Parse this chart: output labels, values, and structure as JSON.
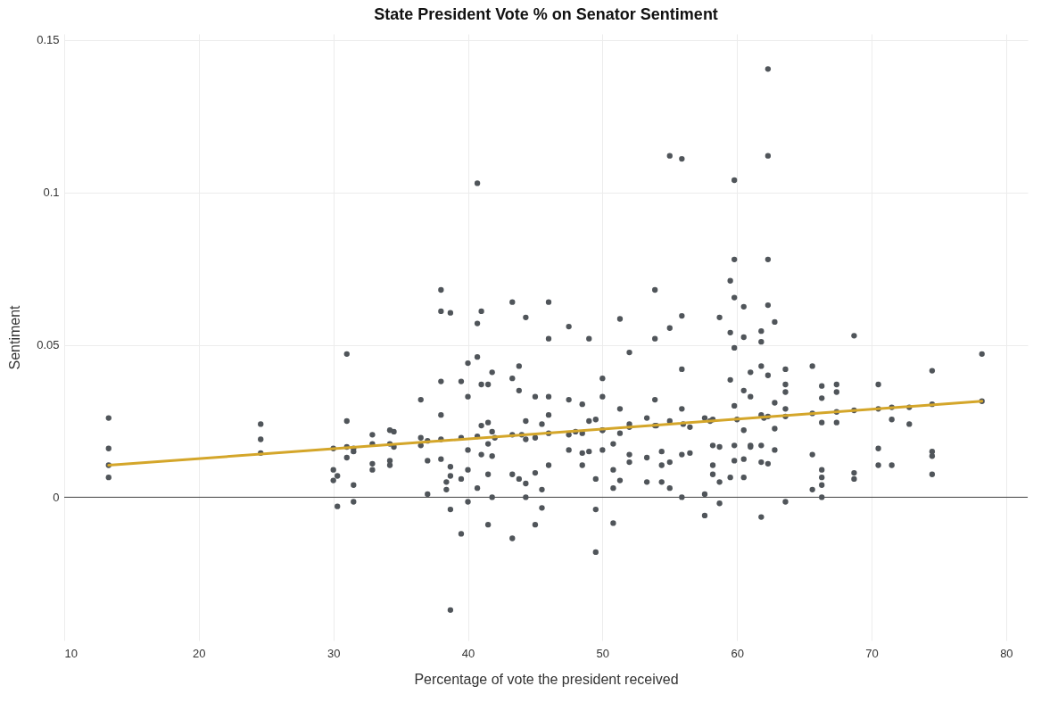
{
  "chart_data": {
    "type": "scatter",
    "title": "State President Vote % on Senator Sentiment",
    "xlabel": "Percentage of vote the president received",
    "ylabel": "Sentiment",
    "xlim": [
      10,
      81.6
    ],
    "ylim": [
      -0.047,
      0.152
    ],
    "xticks": [
      10,
      20,
      30,
      40,
      50,
      60,
      70,
      80
    ],
    "yticks": [
      0,
      0.05,
      0.1,
      0.15
    ],
    "grid": true,
    "ref_lines": [
      {
        "axis": "y",
        "value": 0,
        "color": "#444444"
      }
    ],
    "series": [
      {
        "type": "scatter",
        "color": "#50555a",
        "marker": "circle",
        "x": [
          13.3,
          13.3,
          13.3,
          13.3,
          24.6,
          24.6,
          24.6,
          30,
          30,
          30,
          30.3,
          30.3,
          31,
          31,
          31,
          31,
          31.5,
          31.5,
          31.5,
          31.5,
          32.9,
          32.9,
          32.9,
          32.9,
          34.2,
          34.2,
          34.2,
          34.2,
          34.5,
          34.5,
          36.5,
          36.5,
          36.5,
          37,
          37,
          37,
          38,
          38,
          38,
          38,
          38,
          38,
          38.4,
          38.4,
          38.7,
          38.7,
          38.7,
          38.7,
          38.7,
          39.5,
          39.5,
          39.5,
          39.5,
          40,
          40,
          40,
          40,
          40,
          40.7,
          40.7,
          40.7,
          40.7,
          40.7,
          41,
          41,
          41,
          41,
          41.5,
          41.5,
          41.5,
          41.5,
          41.5,
          41.8,
          41.8,
          41.8,
          41.8,
          43.3,
          43.3,
          43.3,
          43.3,
          43.3,
          43.8,
          43.8,
          43.8,
          44.3,
          44.3,
          44.3,
          44.3,
          44.3,
          45,
          45,
          45,
          45,
          45.5,
          45.5,
          45.5,
          46,
          46,
          46,
          46,
          46,
          47.5,
          47.5,
          47.5,
          47.5,
          48.5,
          48.5,
          48.5,
          48.5,
          49,
          49,
          49,
          49.5,
          49.5,
          49.5,
          49.5,
          50,
          50,
          50,
          50,
          50.8,
          50.8,
          50.8,
          50.8,
          51.3,
          51.3,
          51.3,
          51.3,
          52,
          52,
          52,
          52,
          53.3,
          53.3,
          53.3,
          53.9,
          53.9,
          53.9,
          53.9,
          54.4,
          54.4,
          54.4,
          55,
          55,
          55,
          55,
          55,
          55.9,
          55.9,
          55.9,
          55.9,
          55.9,
          55.9,
          56.5,
          56.5,
          57.6,
          57.6,
          57.6,
          58.2,
          58.2,
          58.2,
          58.2,
          58.7,
          58.7,
          58.7,
          58.7,
          59.5,
          59.5,
          59.5,
          59.5,
          59.8,
          59.8,
          59.8,
          59.8,
          59.8,
          59.8,
          59.8,
          60.5,
          60.5,
          60.5,
          60.5,
          60.5,
          60.5,
          61,
          61,
          61,
          61,
          61.8,
          61.8,
          61.8,
          61.8,
          61.8,
          61.8,
          61.8,
          62.3,
          62.3,
          62.3,
          62.3,
          62.3,
          62.3,
          62.3,
          62.8,
          62.8,
          62.8,
          62.8,
          63.6,
          63.6,
          63.6,
          63.6,
          63.6,
          63.6,
          65.6,
          65.6,
          65.6,
          65.6,
          66.3,
          66.3,
          66.3,
          66.3,
          66.3,
          66.3,
          66.3,
          67.4,
          67.4,
          67.4,
          67.4,
          68.7,
          68.7,
          68.7,
          68.7,
          70.5,
          70.5,
          70.5,
          70.5,
          71.5,
          71.5,
          71.5,
          72.8,
          72.8,
          74.5,
          74.5,
          74.5,
          74.5,
          74.5,
          78.2,
          78.2,
          42,
          44,
          46,
          48,
          50,
          52,
          54,
          56,
          58,
          60,
          62
        ],
        "values": [
          0.026,
          0.016,
          0.0105,
          0.0065,
          0.024,
          0.019,
          0.0145,
          0.016,
          0.009,
          0.0055,
          0.007,
          -0.003,
          0.047,
          0.025,
          0.0165,
          0.013,
          0.016,
          0.015,
          0.004,
          -0.0015,
          0.0205,
          0.0175,
          0.011,
          0.009,
          0.022,
          0.0175,
          0.012,
          0.0105,
          0.0215,
          0.0165,
          0.032,
          0.0195,
          0.017,
          0.0185,
          0.012,
          0.001,
          0.068,
          0.061,
          0.038,
          0.027,
          0.019,
          0.0125,
          0.005,
          0.0025,
          0.0605,
          0.01,
          0.007,
          -0.004,
          -0.037,
          0.038,
          0.0195,
          0.006,
          -0.012,
          0.044,
          0.033,
          0.0155,
          0.009,
          -0.0015,
          0.103,
          0.057,
          0.046,
          0.02,
          0.003,
          0.061,
          0.037,
          0.0235,
          0.014,
          0.037,
          0.0245,
          0.0175,
          0.0075,
          -0.009,
          0.041,
          0.0215,
          0.0135,
          0,
          0.064,
          0.039,
          0.0205,
          0.0075,
          -0.0135,
          0.043,
          0.035,
          0.006,
          0.059,
          0.025,
          0.019,
          0.0045,
          0,
          0.033,
          0.0195,
          0.008,
          -0.009,
          0.024,
          0.0025,
          -0.0035,
          0.064,
          0.052,
          0.033,
          0.027,
          0.0105,
          0.056,
          0.032,
          0.0205,
          0.0155,
          0.0305,
          0.021,
          0.0145,
          0.0105,
          0.052,
          0.025,
          0.015,
          0.0255,
          0.006,
          -0.004,
          -0.018,
          0.039,
          0.033,
          0.022,
          0.0155,
          0.0175,
          0.009,
          0.003,
          -0.0085,
          0.0585,
          0.029,
          0.021,
          0.0055,
          0.0475,
          0.024,
          0.014,
          0.0115,
          0.026,
          0.013,
          0.005,
          0.068,
          0.052,
          0.032,
          0.0235,
          0.015,
          0.0105,
          0.005,
          0.112,
          0.0555,
          0.025,
          0.0115,
          0.003,
          0.111,
          0.0595,
          0.042,
          0.029,
          0.014,
          0,
          0.023,
          0.0145,
          0.026,
          0.001,
          -0.006,
          0.0255,
          0.017,
          0.0105,
          0.0075,
          0.059,
          0.0165,
          0.005,
          -0.002,
          0.071,
          0.054,
          0.0385,
          0.0065,
          0.104,
          0.078,
          0.0655,
          0.049,
          0.03,
          0.017,
          0.012,
          0.0625,
          0.0525,
          0.035,
          0.022,
          0.0125,
          0.0065,
          0.041,
          0.033,
          0.017,
          0.0165,
          0.0545,
          0.051,
          0.043,
          0.027,
          0.017,
          0.0115,
          -0.0065,
          0.1405,
          0.112,
          0.078,
          0.063,
          0.04,
          0.0265,
          0.011,
          0.0575,
          0.031,
          0.0225,
          0.0155,
          0.042,
          0.037,
          0.0345,
          0.029,
          0.0265,
          -0.0015,
          0.043,
          0.0275,
          0.014,
          0.0025,
          0.0365,
          0.0325,
          0.0245,
          0.009,
          0.0065,
          0.004,
          0,
          0.037,
          0.0345,
          0.028,
          0.0245,
          0.053,
          0.0285,
          0.008,
          0.006,
          0.037,
          0.029,
          0.016,
          0.0105,
          0.0295,
          0.0255,
          0.0105,
          0.0295,
          0.024,
          0.0415,
          0.0305,
          0.015,
          0.0135,
          0.0075,
          0.047,
          0.0315,
          0.0195,
          0.0205,
          0.021,
          0.0215,
          0.022,
          0.023,
          0.0235,
          0.024,
          0.025,
          0.0255,
          0.026
        ]
      },
      {
        "type": "line",
        "color": "#d4a62a",
        "x": [
          13.3,
          78.2
        ],
        "values": [
          0.0105,
          0.0315
        ]
      }
    ]
  }
}
